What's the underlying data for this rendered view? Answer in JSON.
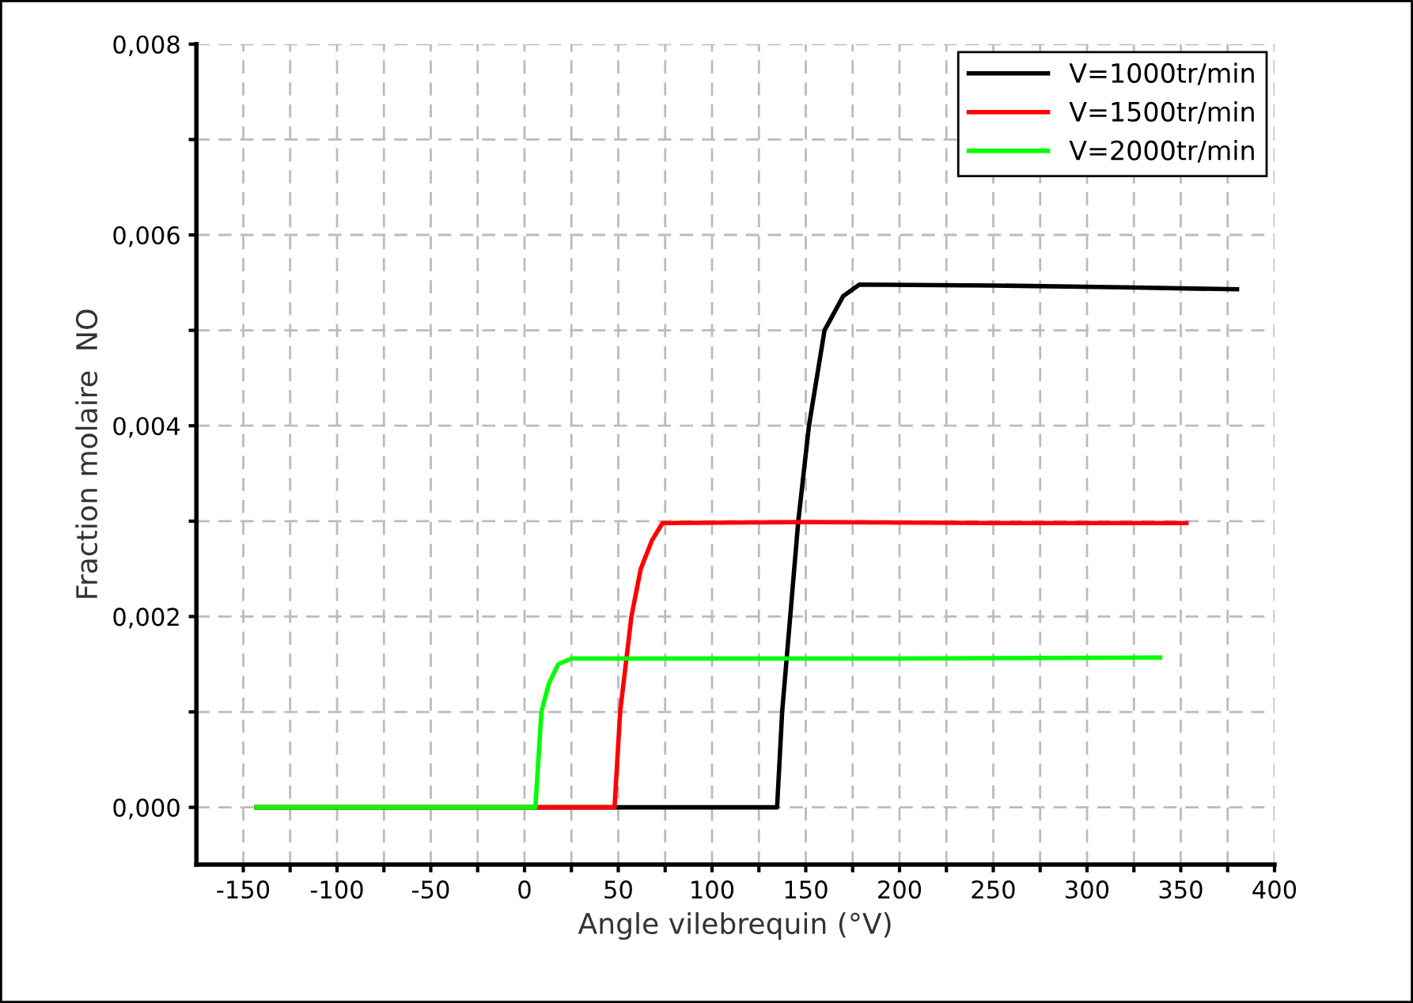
{
  "chart_data": {
    "type": "line",
    "xlabel": "Angle vilebrequin (°V)",
    "ylabel": "Fraction molaire  NO",
    "xlim": [
      -175,
      400
    ],
    "ylim": [
      -0.0006,
      0.008
    ],
    "xticks": [
      -150,
      {
        "value": -125,
        "label": null
      },
      -100,
      {
        "value": -75,
        "label": null
      },
      -50,
      {
        "value": -25,
        "label": null
      },
      0,
      {
        "value": 25,
        "label": null
      },
      50,
      {
        "value": 75,
        "label": null
      },
      100,
      {
        "value": 125,
        "label": null
      },
      150,
      {
        "value": 175,
        "label": null
      },
      200,
      {
        "value": 225,
        "label": null
      },
      250,
      {
        "value": 275,
        "label": null
      },
      300,
      {
        "value": 325,
        "label": null
      },
      350,
      {
        "value": 375,
        "label": null
      },
      400
    ],
    "yticks": [
      {
        "value": 0,
        "label": "0,000"
      },
      {
        "value": 0.001,
        "label": null
      },
      {
        "value": 0.002,
        "label": "0,002"
      },
      {
        "value": 0.003,
        "label": null
      },
      {
        "value": 0.004,
        "label": "0,004"
      },
      {
        "value": 0.005,
        "label": null
      },
      {
        "value": 0.006,
        "label": "0,006"
      },
      {
        "value": 0.007,
        "label": null
      },
      {
        "value": 0.008,
        "label": "0,008"
      }
    ],
    "grid": true,
    "legend": "top right",
    "line_style": "solid",
    "series": [
      {
        "name": "V=1000tr/min",
        "color": "#000000",
        "x": [
          -143,
          134.7,
          137.4,
          141.7,
          146,
          151.7,
          160,
          170,
          178.6,
          250,
          320,
          380
        ],
        "values": [
          0,
          0,
          0.001,
          0.002,
          0.003,
          0.004,
          0.005,
          0.00536,
          0.00548,
          0.00547,
          0.00545,
          0.00543
        ]
      },
      {
        "name": "V=1500tr/min",
        "color": "#ff0000",
        "x": [
          -143,
          48,
          51,
          57,
          62,
          68,
          73.6,
          150,
          250,
          353
        ],
        "values": [
          0,
          0,
          0.001,
          0.002,
          0.0025,
          0.0028,
          0.00298,
          0.00299,
          0.00298,
          0.00298
        ]
      },
      {
        "name": "V=2000tr/min",
        "color": "#00ff00",
        "x": [
          -143,
          5.8,
          9,
          13,
          18,
          25,
          100,
          200,
          339
        ],
        "values": [
          0,
          0,
          0.001,
          0.0013,
          0.0015,
          0.00156,
          0.00156,
          0.00156,
          0.00157
        ]
      }
    ]
  }
}
